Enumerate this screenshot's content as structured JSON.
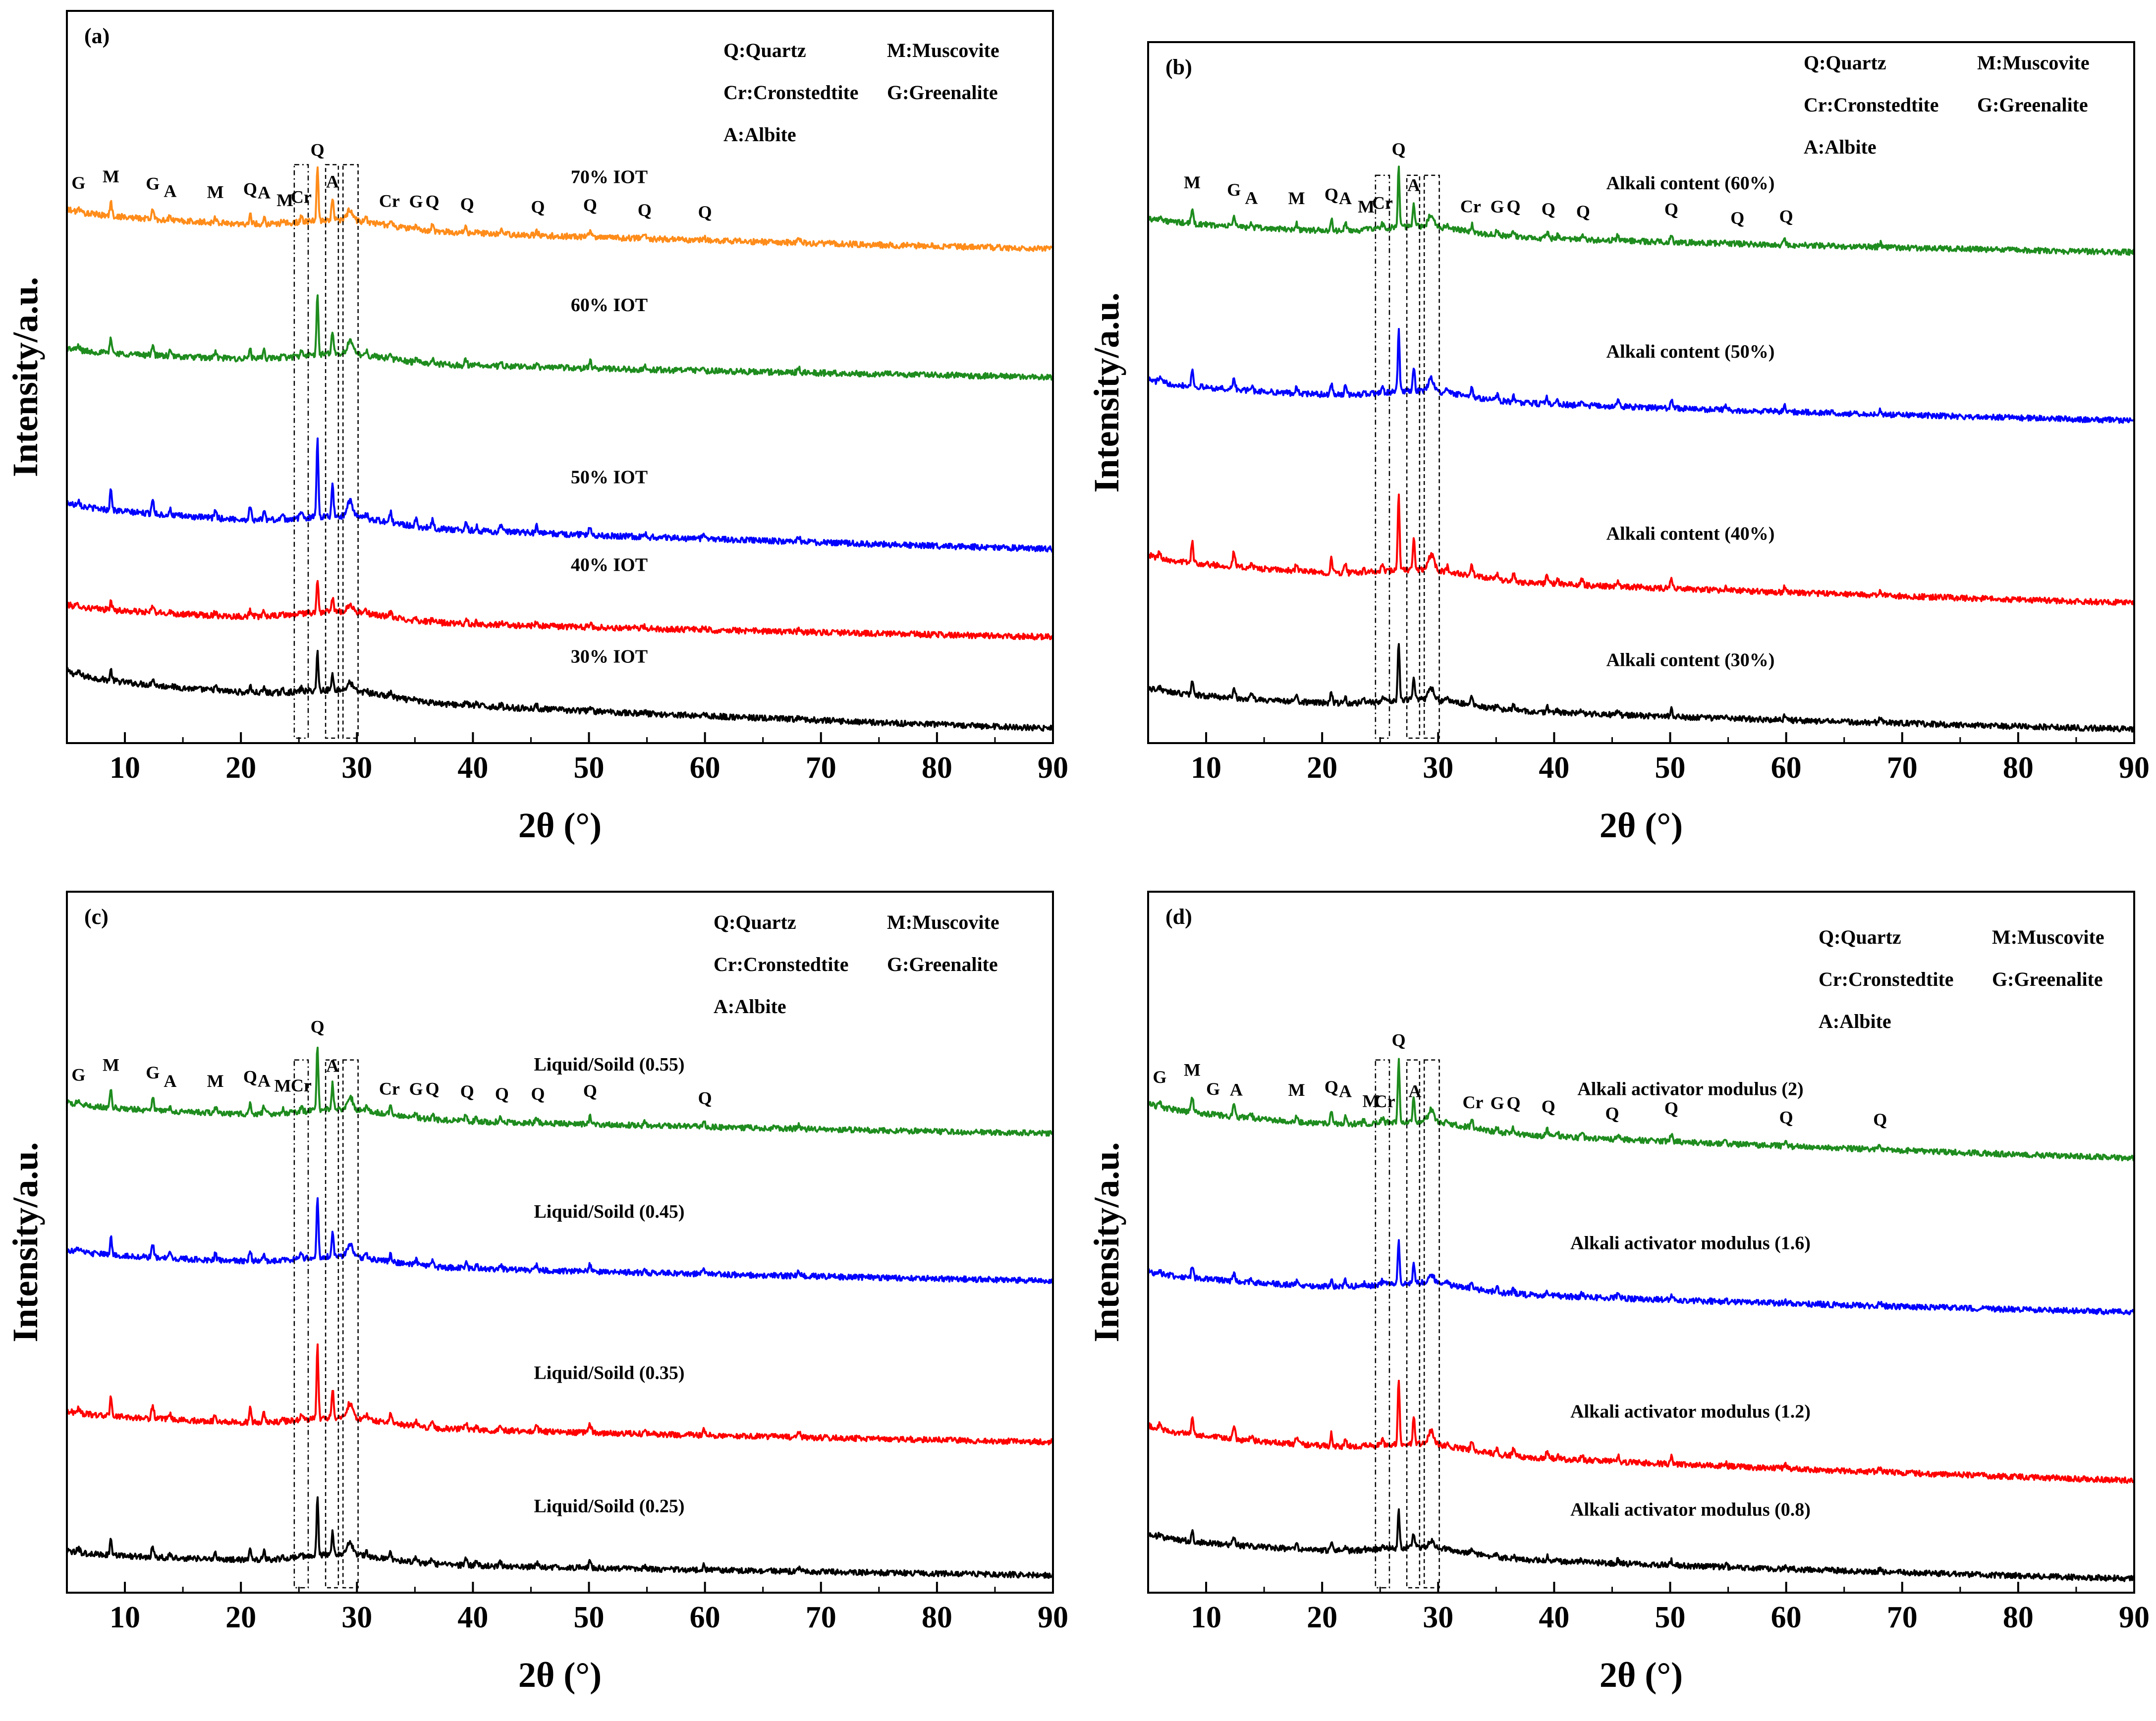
{
  "colors": {
    "black": "#000000",
    "red": "#ff0000",
    "blue": "#0000ff",
    "green": "#1e8c1e",
    "orange": "#ff8c1a"
  },
  "chart_data": [
    {
      "type": "line",
      "panel": "(a)",
      "xlabel": "2θ (°)",
      "ylabel": "Intensity/a.u.",
      "xlim": [
        5,
        90
      ],
      "xticks": [
        10,
        20,
        30,
        40,
        50,
        60,
        70,
        80,
        90
      ],
      "legend": [
        "Q:Quartz",
        "M:Muscovite",
        "Cr:Cronstedtite",
        "G:Greenalite",
        "A:Albite"
      ],
      "series": [
        {
          "name": "30% IOT",
          "color": "black",
          "baseline_start": 0.1,
          "baseline_end": 0.02,
          "peak_scale": 1.0
        },
        {
          "name": "40% IOT",
          "color": "red",
          "baseline_start": 0.19,
          "baseline_end": 0.145,
          "peak_scale": 0.9
        },
        {
          "name": "50% IOT",
          "color": "blue",
          "baseline_start": 0.33,
          "baseline_end": 0.265,
          "peak_scale": 2.1
        },
        {
          "name": "60% IOT",
          "color": "green",
          "baseline_start": 0.54,
          "baseline_end": 0.5,
          "peak_scale": 1.55
        },
        {
          "name": "70% IOT",
          "color": "orange",
          "baseline_start": 0.73,
          "baseline_end": 0.675,
          "peak_scale": 1.35
        }
      ],
      "peak_labels": [
        {
          "text": "G",
          "x": 6.0
        },
        {
          "text": "M",
          "x": 8.8
        },
        {
          "text": "G",
          "x": 12.4
        },
        {
          "text": "A",
          "x": 13.9
        },
        {
          "text": "M",
          "x": 17.8
        },
        {
          "text": "Q",
          "x": 20.8
        },
        {
          "text": "A",
          "x": 22.0
        },
        {
          "text": "M",
          "x": 23.8
        },
        {
          "text": "Cr",
          "x": 25.2
        },
        {
          "text": "Q",
          "x": 26.6
        },
        {
          "text": "A",
          "x": 27.9
        },
        {
          "text": "Cr",
          "x": 32.8
        },
        {
          "text": "G",
          "x": 35.1
        },
        {
          "text": "Q",
          "x": 36.5
        },
        {
          "text": "Q",
          "x": 39.5
        },
        {
          "text": "Q",
          "x": 45.6
        },
        {
          "text": "Q",
          "x": 50.1
        },
        {
          "text": "Q",
          "x": 54.8
        },
        {
          "text": "Q",
          "x": 60.0
        }
      ]
    },
    {
      "type": "line",
      "panel": "(b)",
      "xlabel": "2θ (°)",
      "ylabel": "Intensity/a.u.",
      "xlim": [
        5,
        90
      ],
      "xticks": [
        10,
        20,
        30,
        40,
        50,
        60,
        70,
        80,
        90
      ],
      "legend": [
        "Q:Quartz",
        "M:Muscovite",
        "Cr:Cronstedtite",
        "G:Greenalite",
        "A:Albite"
      ],
      "series": [
        {
          "name": "Alkali content (30%)",
          "color": "black",
          "baseline_start": 0.08,
          "baseline_end": 0.02,
          "peak_scale": 1.6
        },
        {
          "name": "Alkali content (40%)",
          "color": "red",
          "baseline_start": 0.27,
          "baseline_end": 0.2,
          "peak_scale": 2.1
        },
        {
          "name": "Alkali content (50%)",
          "color": "blue",
          "baseline_start": 0.52,
          "baseline_end": 0.46,
          "peak_scale": 1.7
        },
        {
          "name": "Alkali content (60%)",
          "color": "green",
          "baseline_start": 0.75,
          "baseline_end": 0.7,
          "peak_scale": 1.6
        }
      ],
      "peak_labels": [
        {
          "text": "M",
          "x": 8.8
        },
        {
          "text": "G",
          "x": 12.4
        },
        {
          "text": "A",
          "x": 13.9
        },
        {
          "text": "M",
          "x": 17.8
        },
        {
          "text": "Q",
          "x": 20.8
        },
        {
          "text": "A",
          "x": 22.0
        },
        {
          "text": "M",
          "x": 23.8
        },
        {
          "text": "Cr",
          "x": 25.2
        },
        {
          "text": "Q",
          "x": 26.6
        },
        {
          "text": "A",
          "x": 27.9
        },
        {
          "text": "Cr",
          "x": 32.8
        },
        {
          "text": "G",
          "x": 35.1
        },
        {
          "text": "Q",
          "x": 36.5
        },
        {
          "text": "Q",
          "x": 39.5
        },
        {
          "text": "Q",
          "x": 42.5
        },
        {
          "text": "Q",
          "x": 50.1
        },
        {
          "text": "Q",
          "x": 55.8
        },
        {
          "text": "Q",
          "x": 60.0
        }
      ]
    },
    {
      "type": "line",
      "panel": "(c)",
      "xlabel": "2θ (°)",
      "ylabel": "Intensity/a.u.",
      "xlim": [
        5,
        90
      ],
      "xticks": [
        10,
        20,
        30,
        40,
        50,
        60,
        70,
        80,
        90
      ],
      "legend": [
        "Q:Quartz",
        "M:Muscovite",
        "Cr:Cronstedtite",
        "G:Greenalite",
        "A:Albite"
      ],
      "series": [
        {
          "name": "Liquid/Soild (0.25)",
          "color": "black",
          "baseline_start": 0.06,
          "baseline_end": 0.025,
          "peak_scale": 1.6
        },
        {
          "name": "Liquid/Soild (0.35)",
          "color": "red",
          "baseline_start": 0.26,
          "baseline_end": 0.215,
          "peak_scale": 2.0
        },
        {
          "name": "Liquid/Soild (0.45)",
          "color": "blue",
          "baseline_start": 0.49,
          "baseline_end": 0.445,
          "peak_scale": 1.7
        },
        {
          "name": "Liquid/Soild (0.55)",
          "color": "green",
          "baseline_start": 0.7,
          "baseline_end": 0.655,
          "peak_scale": 1.75
        }
      ],
      "peak_labels": [
        {
          "text": "G",
          "x": 6.0
        },
        {
          "text": "M",
          "x": 8.8
        },
        {
          "text": "G",
          "x": 12.4
        },
        {
          "text": "A",
          "x": 13.9
        },
        {
          "text": "M",
          "x": 17.8
        },
        {
          "text": "Q",
          "x": 20.8
        },
        {
          "text": "A",
          "x": 22.0
        },
        {
          "text": "M",
          "x": 23.6
        },
        {
          "text": "Cr",
          "x": 25.2
        },
        {
          "text": "Q",
          "x": 26.6
        },
        {
          "text": "A",
          "x": 27.9
        },
        {
          "text": "Cr",
          "x": 32.8
        },
        {
          "text": "G",
          "x": 35.1
        },
        {
          "text": "Q",
          "x": 36.5
        },
        {
          "text": "Q",
          "x": 39.5
        },
        {
          "text": "Q",
          "x": 42.5
        },
        {
          "text": "Q",
          "x": 45.6
        },
        {
          "text": "Q",
          "x": 50.1
        },
        {
          "text": "Q",
          "x": 60.0
        }
      ]
    },
    {
      "type": "line",
      "panel": "(d)",
      "xlabel": "2θ (°)",
      "ylabel": "Intensity/a.u.",
      "xlim": [
        5,
        90
      ],
      "xticks": [
        10,
        20,
        30,
        40,
        50,
        60,
        70,
        80,
        90
      ],
      "legend": [
        "Q:Quartz",
        "M:Muscovite",
        "Cr:Cronstedtite",
        "G:Greenalite",
        "A:Albite"
      ],
      "series": [
        {
          "name": "Alkali activator modulus (0.8)",
          "color": "black",
          "baseline_start": 0.085,
          "baseline_end": 0.02,
          "peak_scale": 1.0
        },
        {
          "name": "Alkali activator modulus (1.2)",
          "color": "red",
          "baseline_start": 0.24,
          "baseline_end": 0.16,
          "peak_scale": 1.8
        },
        {
          "name": "Alkali activator modulus (1.6)",
          "color": "blue",
          "baseline_start": 0.46,
          "baseline_end": 0.4,
          "peak_scale": 1.2
        },
        {
          "name": "Alkali activator modulus (2)",
          "color": "green",
          "baseline_start": 0.7,
          "baseline_end": 0.62,
          "peak_scale": 1.7
        }
      ],
      "peak_labels": [
        {
          "text": "G",
          "x": 6.0
        },
        {
          "text": "M",
          "x": 8.8
        },
        {
          "text": "G",
          "x": 10.6
        },
        {
          "text": "A",
          "x": 12.6
        },
        {
          "text": "M",
          "x": 17.8
        },
        {
          "text": "Q",
          "x": 20.8
        },
        {
          "text": "A",
          "x": 22.0
        },
        {
          "text": "M",
          "x": 24.2
        },
        {
          "text": "Cr",
          "x": 25.4
        },
        {
          "text": "Q",
          "x": 26.6
        },
        {
          "text": "A",
          "x": 28.0
        },
        {
          "text": "Cr",
          "x": 33.0
        },
        {
          "text": "G",
          "x": 35.1
        },
        {
          "text": "Q",
          "x": 36.5
        },
        {
          "text": "Q",
          "x": 39.5
        },
        {
          "text": "Q",
          "x": 45.0
        },
        {
          "text": "Q",
          "x": 50.1
        },
        {
          "text": "Q",
          "x": 60.0
        },
        {
          "text": "Q",
          "x": 68.1
        }
      ]
    }
  ]
}
